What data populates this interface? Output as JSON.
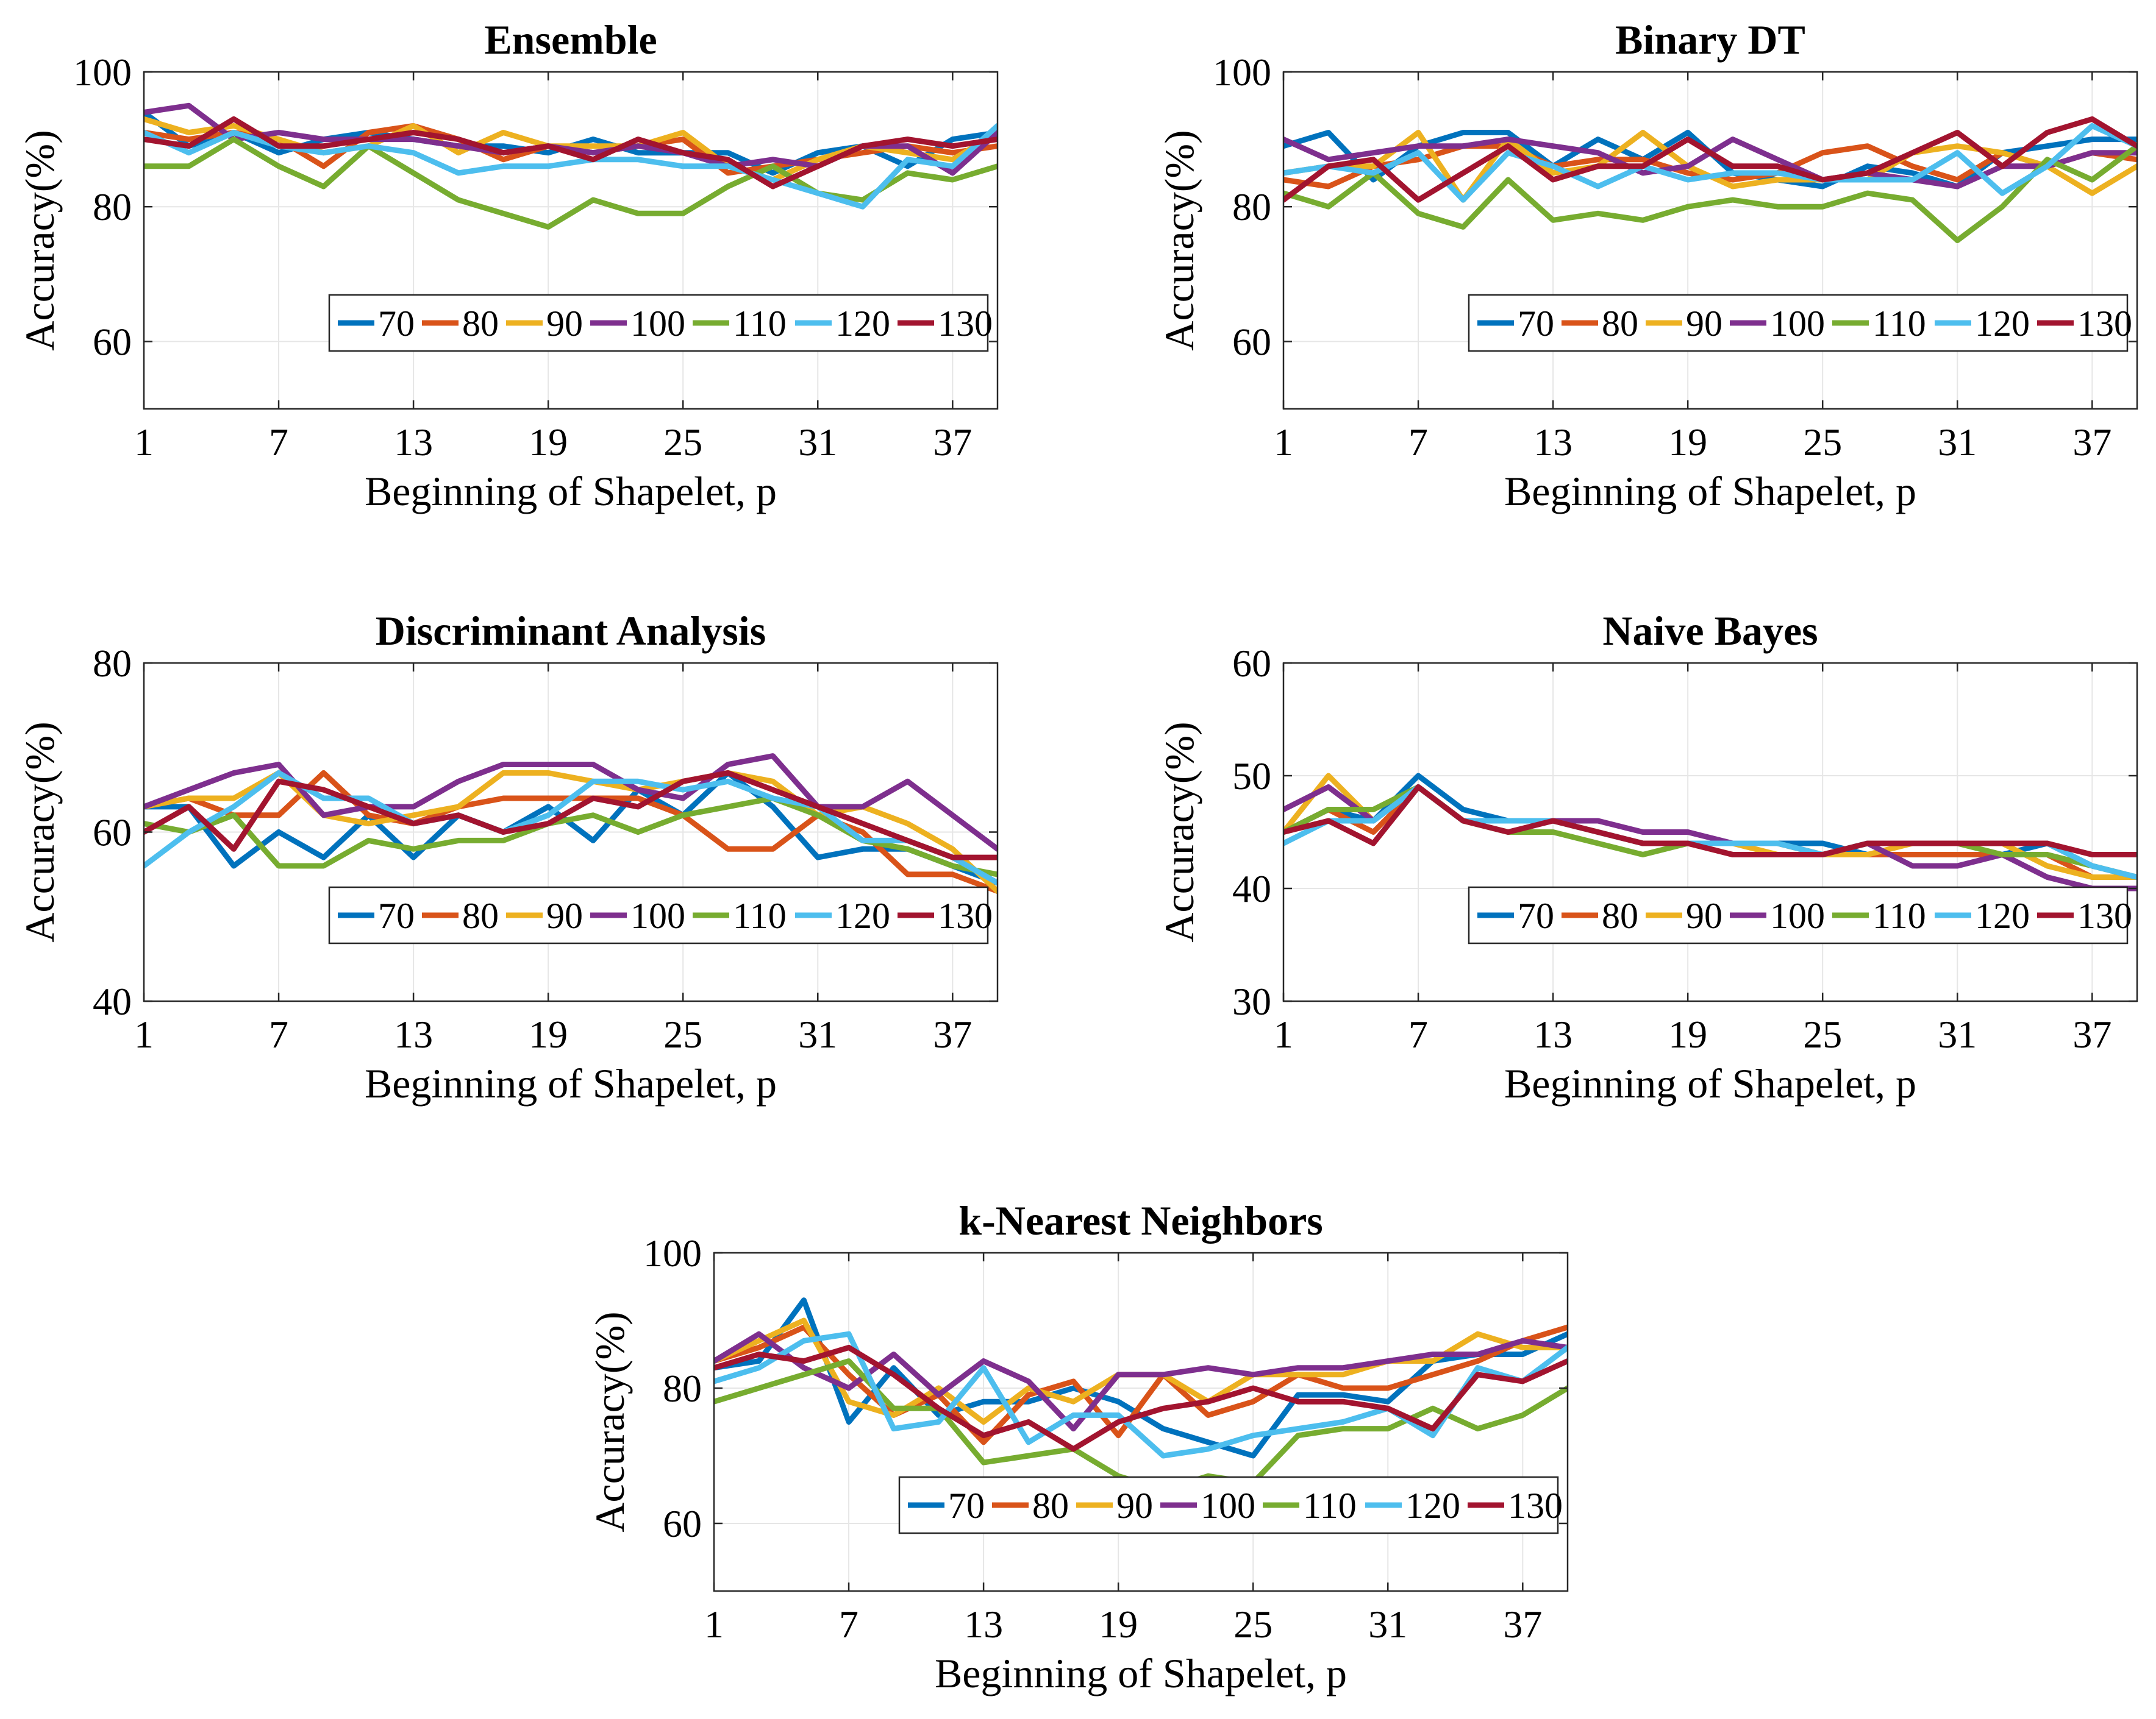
{
  "chart_data": [
    {
      "type": "line",
      "title": "Ensemble",
      "xlabel": "Beginning of Shapelet, p",
      "ylabel": "Accuracy(%)",
      "xlim": [
        1,
        39
      ],
      "ylim": [
        50,
        100
      ],
      "xticks": [
        1,
        7,
        13,
        19,
        25,
        31,
        37
      ],
      "yticks": [
        60,
        80,
        100
      ],
      "grid": true,
      "legend_position": "lower-right",
      "x": [
        1,
        3,
        5,
        7,
        9,
        11,
        13,
        15,
        17,
        19,
        21,
        23,
        25,
        27,
        29,
        31,
        33,
        35,
        37,
        39
      ],
      "series": [
        {
          "name": "70",
          "color": "#0072BD",
          "values": [
            94,
            89,
            91,
            88,
            90,
            91,
            90,
            89,
            89,
            88,
            90,
            88,
            88,
            88,
            85,
            88,
            89,
            86,
            90,
            91
          ]
        },
        {
          "name": "80",
          "color": "#D95319",
          "values": [
            91,
            90,
            91,
            90,
            86,
            91,
            92,
            90,
            87,
            89,
            88,
            89,
            90,
            85,
            86,
            87,
            88,
            89,
            88,
            89
          ]
        },
        {
          "name": "90",
          "color": "#EDB120",
          "values": [
            93,
            91,
            92,
            90,
            88,
            89,
            92,
            88,
            91,
            89,
            89,
            89,
            91,
            86,
            84,
            87,
            89,
            88,
            87,
            91
          ]
        },
        {
          "name": "100",
          "color": "#7E2F8E",
          "values": [
            94,
            95,
            90,
            91,
            90,
            90,
            90,
            89,
            88,
            89,
            88,
            89,
            88,
            86,
            87,
            86,
            89,
            89,
            85,
            91
          ]
        },
        {
          "name": "110",
          "color": "#77AC30",
          "values": [
            86,
            86,
            90,
            86,
            83,
            89,
            85,
            81,
            79,
            77,
            81,
            79,
            79,
            83,
            86,
            82,
            81,
            85,
            84,
            86
          ]
        },
        {
          "name": "120",
          "color": "#4DBEEE",
          "values": [
            91,
            88,
            91,
            89,
            88,
            89,
            88,
            85,
            86,
            86,
            87,
            87,
            86,
            86,
            84,
            82,
            80,
            87,
            86,
            92
          ]
        },
        {
          "name": "130",
          "color": "#A2142F",
          "values": [
            90,
            89,
            93,
            89,
            89,
            90,
            91,
            90,
            88,
            89,
            87,
            90,
            88,
            87,
            83,
            86,
            89,
            90,
            89,
            90
          ]
        }
      ]
    },
    {
      "type": "line",
      "title": "Binary DT",
      "xlabel": "Beginning of Shapelet, p",
      "ylabel": "Accuracy(%)",
      "xlim": [
        1,
        39
      ],
      "ylim": [
        50,
        100
      ],
      "xticks": [
        1,
        7,
        13,
        19,
        25,
        31,
        37
      ],
      "yticks": [
        60,
        80,
        100
      ],
      "grid": true,
      "legend_position": "lower-right",
      "x": [
        1,
        3,
        5,
        7,
        9,
        11,
        13,
        15,
        17,
        19,
        21,
        23,
        25,
        27,
        29,
        31,
        33,
        35,
        37,
        39
      ],
      "series": [
        {
          "name": "70",
          "color": "#0072BD",
          "values": [
            89,
            91,
            84,
            89,
            91,
            91,
            86,
            90,
            87,
            91,
            85,
            84,
            83,
            86,
            85,
            83,
            88,
            89,
            90,
            90
          ]
        },
        {
          "name": "80",
          "color": "#D95319",
          "values": [
            84,
            83,
            86,
            87,
            89,
            89,
            86,
            87,
            87,
            85,
            84,
            85,
            88,
            89,
            86,
            84,
            88,
            86,
            88,
            87
          ]
        },
        {
          "name": "90",
          "color": "#EDB120",
          "values": [
            85,
            86,
            86,
            91,
            81,
            90,
            85,
            86,
            91,
            86,
            83,
            84,
            84,
            84,
            88,
            89,
            88,
            86,
            82,
            86
          ]
        },
        {
          "name": "100",
          "color": "#7E2F8E",
          "values": [
            90,
            87,
            88,
            89,
            89,
            90,
            89,
            88,
            85,
            86,
            90,
            87,
            84,
            85,
            84,
            83,
            86,
            86,
            88,
            88
          ]
        },
        {
          "name": "110",
          "color": "#77AC30",
          "values": [
            82,
            80,
            85,
            79,
            77,
            84,
            78,
            79,
            78,
            80,
            81,
            80,
            80,
            82,
            81,
            75,
            80,
            87,
            84,
            89
          ]
        },
        {
          "name": "120",
          "color": "#4DBEEE",
          "values": [
            85,
            86,
            85,
            88,
            81,
            88,
            86,
            83,
            86,
            84,
            85,
            85,
            84,
            84,
            84,
            88,
            82,
            86,
            92,
            89
          ]
        },
        {
          "name": "130",
          "color": "#A2142F",
          "values": [
            81,
            86,
            87,
            81,
            85,
            89,
            84,
            86,
            86,
            90,
            86,
            86,
            84,
            85,
            88,
            91,
            86,
            91,
            93,
            89
          ]
        }
      ]
    },
    {
      "type": "line",
      "title": "Discriminant Analysis",
      "xlabel": "Beginning of Shapelet, p",
      "ylabel": "Accuracy(%)",
      "xlim": [
        1,
        39
      ],
      "ylim": [
        40,
        80
      ],
      "xticks": [
        1,
        7,
        13,
        19,
        25,
        31,
        37
      ],
      "yticks": [
        40,
        60,
        80
      ],
      "grid": true,
      "legend_position": "lower-right",
      "x": [
        1,
        3,
        5,
        7,
        9,
        11,
        13,
        15,
        17,
        19,
        21,
        23,
        25,
        27,
        29,
        31,
        33,
        35,
        37,
        39
      ],
      "series": [
        {
          "name": "70",
          "color": "#0072BD",
          "values": [
            63,
            63,
            56,
            60,
            57,
            62,
            57,
            62,
            60,
            63,
            59,
            65,
            62,
            67,
            63,
            57,
            58,
            58,
            56,
            54
          ]
        },
        {
          "name": "80",
          "color": "#D95319",
          "values": [
            63,
            64,
            62,
            62,
            67,
            62,
            61,
            63,
            64,
            64,
            64,
            64,
            62,
            58,
            58,
            62,
            60,
            55,
            55,
            53
          ]
        },
        {
          "name": "90",
          "color": "#EDB120",
          "values": [
            63,
            64,
            64,
            67,
            62,
            61,
            62,
            63,
            67,
            67,
            66,
            65,
            66,
            67,
            66,
            62,
            63,
            61,
            58,
            53
          ]
        },
        {
          "name": "100",
          "color": "#7E2F8E",
          "values": [
            63,
            65,
            67,
            68,
            62,
            63,
            63,
            66,
            68,
            68,
            68,
            65,
            64,
            68,
            69,
            63,
            63,
            66,
            62,
            58
          ]
        },
        {
          "name": "110",
          "color": "#77AC30",
          "values": [
            61,
            60,
            62,
            56,
            56,
            59,
            58,
            59,
            59,
            61,
            62,
            60,
            62,
            63,
            64,
            62,
            59,
            58,
            56,
            55
          ]
        },
        {
          "name": "120",
          "color": "#4DBEEE",
          "values": [
            56,
            60,
            63,
            67,
            64,
            64,
            61,
            62,
            60,
            62,
            66,
            66,
            65,
            66,
            64,
            63,
            59,
            59,
            57,
            54
          ]
        },
        {
          "name": "130",
          "color": "#A2142F",
          "values": [
            60,
            63,
            58,
            66,
            65,
            63,
            61,
            62,
            60,
            61,
            64,
            63,
            66,
            67,
            65,
            63,
            61,
            59,
            57,
            57
          ]
        }
      ]
    },
    {
      "type": "line",
      "title": "Naive Bayes",
      "xlabel": "Beginning of Shapelet, p",
      "ylabel": "Accuracy(%)",
      "xlim": [
        1,
        39
      ],
      "ylim": [
        30,
        60
      ],
      "xticks": [
        1,
        7,
        13,
        19,
        25,
        31,
        37
      ],
      "yticks": [
        30,
        40,
        50,
        60
      ],
      "grid": true,
      "legend_position": "lower-right",
      "x": [
        1,
        3,
        5,
        7,
        9,
        11,
        13,
        15,
        17,
        19,
        21,
        23,
        25,
        27,
        29,
        31,
        33,
        35,
        37,
        39
      ],
      "series": [
        {
          "name": "70",
          "color": "#0072BD",
          "values": [
            45,
            47,
            46,
            50,
            47,
            46,
            46,
            45,
            44,
            44,
            44,
            44,
            44,
            43,
            43,
            43,
            43,
            44,
            42,
            41
          ]
        },
        {
          "name": "80",
          "color": "#D95319",
          "values": [
            45,
            47,
            45,
            49,
            46,
            46,
            46,
            45,
            44,
            44,
            43,
            43,
            43,
            43,
            43,
            43,
            43,
            43,
            41,
            41
          ]
        },
        {
          "name": "90",
          "color": "#EDB120",
          "values": [
            45,
            50,
            46,
            49,
            46,
            46,
            46,
            45,
            44,
            44,
            44,
            43,
            43,
            43,
            44,
            44,
            44,
            42,
            41,
            41
          ]
        },
        {
          "name": "100",
          "color": "#7E2F8E",
          "values": [
            47,
            49,
            46,
            49,
            46,
            46,
            46,
            46,
            45,
            45,
            44,
            44,
            43,
            44,
            42,
            42,
            43,
            41,
            40,
            40
          ]
        },
        {
          "name": "110",
          "color": "#77AC30",
          "values": [
            45,
            47,
            47,
            49,
            46,
            45,
            45,
            44,
            43,
            44,
            44,
            44,
            43,
            44,
            44,
            44,
            43,
            43,
            42,
            41
          ]
        },
        {
          "name": "120",
          "color": "#4DBEEE",
          "values": [
            44,
            46,
            46,
            49,
            46,
            46,
            46,
            45,
            44,
            44,
            44,
            44,
            43,
            44,
            44,
            44,
            44,
            44,
            42,
            41
          ]
        },
        {
          "name": "130",
          "color": "#A2142F",
          "values": [
            45,
            46,
            44,
            49,
            46,
            45,
            46,
            45,
            44,
            44,
            43,
            43,
            43,
            44,
            44,
            44,
            44,
            44,
            43,
            43
          ]
        }
      ]
    },
    {
      "type": "line",
      "title": "k-Nearest Neighbors",
      "xlabel": "Beginning of Shapelet, p",
      "ylabel": "Accuracy(%)",
      "xlim": [
        1,
        39
      ],
      "ylim": [
        50,
        100
      ],
      "xticks": [
        1,
        7,
        13,
        19,
        25,
        31,
        37
      ],
      "yticks": [
        60,
        80,
        100
      ],
      "grid": true,
      "legend_position": "lower-right",
      "x": [
        1,
        3,
        5,
        7,
        9,
        11,
        13,
        15,
        17,
        19,
        21,
        23,
        25,
        27,
        29,
        31,
        33,
        35,
        37,
        39
      ],
      "series": [
        {
          "name": "70",
          "color": "#0072BD",
          "values": [
            83,
            84,
            93,
            75,
            83,
            76,
            78,
            78,
            80,
            78,
            74,
            72,
            70,
            79,
            79,
            78,
            84,
            85,
            85,
            88
          ]
        },
        {
          "name": "80",
          "color": "#D95319",
          "values": [
            84,
            86,
            89,
            82,
            76,
            79,
            72,
            79,
            81,
            73,
            82,
            76,
            78,
            82,
            80,
            80,
            82,
            84,
            87,
            89
          ]
        },
        {
          "name": "90",
          "color": "#EDB120",
          "values": [
            84,
            87,
            90,
            78,
            76,
            80,
            75,
            80,
            78,
            82,
            82,
            78,
            82,
            82,
            82,
            84,
            84,
            88,
            86,
            86
          ]
        },
        {
          "name": "100",
          "color": "#7E2F8E",
          "values": [
            84,
            88,
            83,
            80,
            85,
            79,
            84,
            81,
            74,
            82,
            82,
            83,
            82,
            83,
            83,
            84,
            85,
            85,
            87,
            86
          ]
        },
        {
          "name": "110",
          "color": "#77AC30",
          "values": [
            78,
            80,
            82,
            84,
            77,
            77,
            69,
            70,
            71,
            67,
            65,
            67,
            66,
            73,
            74,
            74,
            77,
            74,
            76,
            80
          ]
        },
        {
          "name": "120",
          "color": "#4DBEEE",
          "values": [
            81,
            83,
            87,
            88,
            74,
            75,
            83,
            72,
            76,
            76,
            70,
            71,
            73,
            74,
            75,
            77,
            73,
            83,
            81,
            86
          ]
        },
        {
          "name": "130",
          "color": "#A2142F",
          "values": [
            83,
            85,
            84,
            86,
            82,
            77,
            73,
            75,
            71,
            75,
            77,
            78,
            80,
            78,
            78,
            77,
            74,
            82,
            81,
            84
          ]
        }
      ]
    }
  ]
}
